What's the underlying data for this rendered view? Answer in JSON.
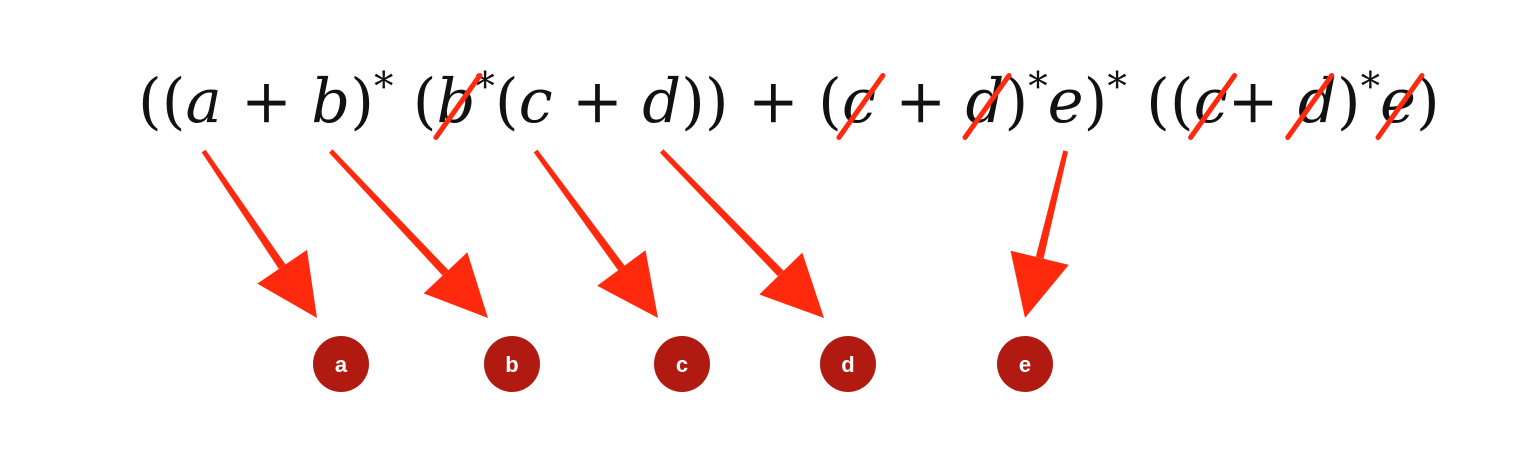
{
  "formula": {
    "tokens": [
      {
        "t": "((",
        "style": "normal"
      },
      {
        "t": "a",
        "style": "italic",
        "ref": 0
      },
      {
        "t": " + ",
        "style": "normal"
      },
      {
        "t": "b",
        "style": "italic",
        "ref": 1
      },
      {
        "t": ")",
        "style": "normal"
      },
      {
        "t": "*",
        "style": "sup"
      },
      {
        "t": " (",
        "style": "normal"
      },
      {
        "t": "b",
        "style": "italic",
        "struck": true
      },
      {
        "t": "*",
        "style": "sup"
      },
      {
        "t": "(",
        "style": "normal"
      },
      {
        "t": "c",
        "style": "italic",
        "ref": 2
      },
      {
        "t": " + ",
        "style": "normal"
      },
      {
        "t": "d",
        "style": "italic",
        "ref": 3
      },
      {
        "t": ")) + (",
        "style": "normal"
      },
      {
        "t": "c",
        "style": "italic",
        "struck": true
      },
      {
        "t": " + ",
        "style": "normal"
      },
      {
        "t": "d",
        "style": "italic",
        "struck": true
      },
      {
        "t": ")",
        "style": "normal"
      },
      {
        "t": "*",
        "style": "sup"
      },
      {
        "t": "e",
        "style": "italic",
        "ref": 4
      },
      {
        "t": ")",
        "style": "normal"
      },
      {
        "t": "*",
        "style": "sup"
      },
      {
        "t": " ((",
        "style": "normal"
      },
      {
        "t": "c",
        "style": "italic",
        "struck": true
      },
      {
        "t": "+",
        "style": "normal"
      },
      {
        "t": " d",
        "style": "italic",
        "struck": true
      },
      {
        "t": ")",
        "style": "normal"
      },
      {
        "t": "*",
        "style": "sup"
      },
      {
        "t": "e",
        "style": "italic",
        "struck": true
      },
      {
        "t": ")",
        "style": "normal"
      }
    ]
  },
  "badges": [
    {
      "label": "a"
    },
    {
      "label": "b"
    },
    {
      "label": "c"
    },
    {
      "label": "d"
    },
    {
      "label": "e"
    }
  ],
  "colors": {
    "arrow": "#ff2a0e",
    "strike": "#ff2a0e",
    "badge": "#b01a10",
    "badge_text": "#ffffff",
    "text": "#111111"
  }
}
